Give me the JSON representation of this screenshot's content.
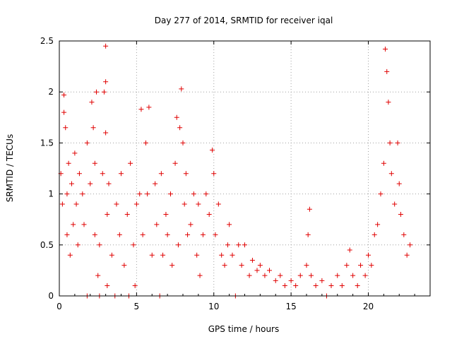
{
  "chart_data": {
    "type": "scatter",
    "title": "Day 277 of 2014, SRMTID for receiver iqal",
    "xlabel": "GPS time / hours",
    "ylabel": "SRMTID / TECUs",
    "xlim": [
      0,
      24
    ],
    "ylim": [
      0,
      2.5
    ],
    "xticks": [
      0,
      5,
      10,
      15,
      20
    ],
    "yticks": [
      0,
      0.5,
      1,
      1.5,
      2,
      2.5
    ],
    "grid": true,
    "marker": "+",
    "color": "#e00000",
    "series": [
      {
        "name": "SRMTID",
        "points": [
          [
            0.1,
            1.2
          ],
          [
            0.2,
            0.9
          ],
          [
            0.3,
            1.8
          ],
          [
            0.3,
            1.97
          ],
          [
            0.4,
            1.65
          ],
          [
            0.5,
            1.0
          ],
          [
            0.5,
            0.6
          ],
          [
            0.6,
            1.3
          ],
          [
            0.7,
            0.4
          ],
          [
            0.8,
            1.1
          ],
          [
            0.9,
            0.7
          ],
          [
            1.0,
            1.4
          ],
          [
            1.1,
            0.9
          ],
          [
            1.2,
            0.5
          ],
          [
            1.3,
            1.2
          ],
          [
            1.5,
            1.0
          ],
          [
            1.6,
            0.7
          ],
          [
            1.8,
            0.0
          ],
          [
            1.8,
            1.5
          ],
          [
            2.0,
            1.1
          ],
          [
            2.1,
            1.9
          ],
          [
            2.2,
            1.65
          ],
          [
            2.3,
            1.3
          ],
          [
            2.3,
            0.6
          ],
          [
            2.4,
            2.0
          ],
          [
            2.5,
            0.2
          ],
          [
            2.6,
            0.5
          ],
          [
            2.6,
            0.0
          ],
          [
            2.8,
            1.2
          ],
          [
            2.9,
            2.0
          ],
          [
            3.0,
            2.45
          ],
          [
            3.0,
            2.1
          ],
          [
            3.0,
            1.6
          ],
          [
            3.1,
            0.8
          ],
          [
            3.1,
            0.1
          ],
          [
            3.2,
            1.1
          ],
          [
            3.4,
            0.4
          ],
          [
            3.6,
            0.0
          ],
          [
            3.7,
            0.9
          ],
          [
            3.9,
            0.6
          ],
          [
            4.0,
            1.2
          ],
          [
            4.2,
            0.3
          ],
          [
            4.4,
            0.8
          ],
          [
            4.5,
            0.0
          ],
          [
            4.6,
            1.3
          ],
          [
            4.8,
            0.5
          ],
          [
            4.9,
            0.1
          ],
          [
            5.0,
            0.9
          ],
          [
            5.2,
            1.0
          ],
          [
            5.3,
            1.83
          ],
          [
            5.4,
            0.6
          ],
          [
            5.6,
            1.5
          ],
          [
            5.7,
            1.0
          ],
          [
            5.8,
            1.85
          ],
          [
            6.0,
            0.4
          ],
          [
            6.2,
            1.1
          ],
          [
            6.3,
            0.7
          ],
          [
            6.5,
            0.0
          ],
          [
            6.6,
            1.2
          ],
          [
            6.7,
            0.4
          ],
          [
            6.9,
            0.8
          ],
          [
            7.0,
            0.6
          ],
          [
            7.2,
            1.0
          ],
          [
            7.3,
            0.3
          ],
          [
            7.5,
            1.3
          ],
          [
            7.6,
            1.75
          ],
          [
            7.7,
            0.5
          ],
          [
            7.8,
            1.65
          ],
          [
            7.9,
            2.03
          ],
          [
            8.0,
            1.5
          ],
          [
            8.1,
            0.9
          ],
          [
            8.2,
            1.2
          ],
          [
            8.3,
            0.6
          ],
          [
            8.5,
            0.7
          ],
          [
            8.7,
            1.0
          ],
          [
            8.9,
            0.4
          ],
          [
            9.0,
            0.9
          ],
          [
            9.1,
            0.2
          ],
          [
            9.3,
            0.6
          ],
          [
            9.5,
            1.0
          ],
          [
            9.7,
            0.8
          ],
          [
            9.9,
            1.43
          ],
          [
            10.0,
            1.2
          ],
          [
            10.1,
            0.6
          ],
          [
            10.3,
            0.9
          ],
          [
            10.5,
            0.4
          ],
          [
            10.7,
            0.3
          ],
          [
            10.9,
            0.5
          ],
          [
            11.0,
            0.7
          ],
          [
            11.2,
            0.4
          ],
          [
            11.4,
            0.0
          ],
          [
            11.6,
            0.5
          ],
          [
            11.8,
            0.3
          ],
          [
            12.0,
            0.5
          ],
          [
            12.3,
            0.2
          ],
          [
            12.5,
            0.35
          ],
          [
            12.8,
            0.25
          ],
          [
            13.0,
            0.3
          ],
          [
            13.3,
            0.2
          ],
          [
            13.6,
            0.25
          ],
          [
            14.0,
            0.15
          ],
          [
            14.3,
            0.2
          ],
          [
            14.6,
            0.1
          ],
          [
            15.0,
            0.15
          ],
          [
            15.3,
            0.1
          ],
          [
            15.6,
            0.2
          ],
          [
            16.0,
            0.3
          ],
          [
            16.1,
            0.6
          ],
          [
            16.2,
            0.85
          ],
          [
            16.3,
            0.2
          ],
          [
            16.6,
            0.1
          ],
          [
            17.0,
            0.15
          ],
          [
            17.3,
            0.0
          ],
          [
            17.6,
            0.1
          ],
          [
            18.0,
            0.2
          ],
          [
            18.3,
            0.1
          ],
          [
            18.6,
            0.3
          ],
          [
            18.8,
            0.45
          ],
          [
            19.0,
            0.2
          ],
          [
            19.3,
            0.1
          ],
          [
            19.5,
            0.3
          ],
          [
            19.8,
            0.2
          ],
          [
            20.0,
            0.4
          ],
          [
            20.2,
            0.3
          ],
          [
            20.4,
            0.6
          ],
          [
            20.6,
            0.7
          ],
          [
            20.8,
            1.0
          ],
          [
            21.0,
            1.3
          ],
          [
            21.1,
            2.42
          ],
          [
            21.2,
            2.2
          ],
          [
            21.3,
            1.9
          ],
          [
            21.4,
            1.5
          ],
          [
            21.5,
            1.2
          ],
          [
            21.7,
            0.9
          ],
          [
            21.9,
            1.5
          ],
          [
            22.0,
            1.1
          ],
          [
            22.1,
            0.8
          ],
          [
            22.3,
            0.6
          ],
          [
            22.5,
            0.4
          ],
          [
            22.7,
            0.5
          ]
        ]
      }
    ]
  }
}
